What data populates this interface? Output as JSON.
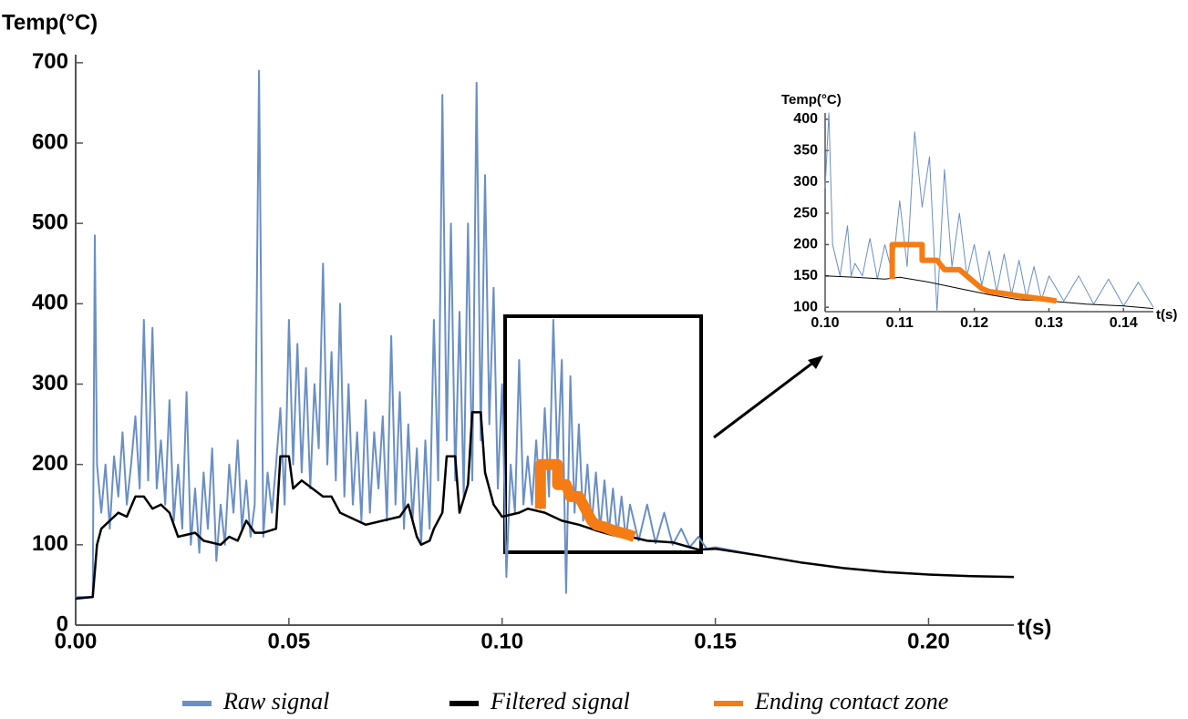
{
  "chart_data": [
    {
      "type": "line",
      "y_label": "Temp(°C)",
      "x_label": "t(s)",
      "xlim": [
        0,
        0.22
      ],
      "ylim": [
        0,
        710
      ],
      "xticks": [
        {
          "value": 0,
          "label": "0.00"
        },
        {
          "value": 0.05,
          "label": "0.05"
        },
        {
          "value": 0.1,
          "label": "0.10"
        },
        {
          "value": 0.15,
          "label": "0.15"
        },
        {
          "value": 0.2,
          "label": "0.20"
        }
      ],
      "yticks": [
        0,
        100,
        200,
        300,
        400,
        500,
        600,
        700
      ],
      "series": [
        {
          "name": "Raw signal",
          "color": "#6a8fc4",
          "width": 2,
          "x": [
            0,
            0.004,
            0.0045,
            0.005,
            0.006,
            0.007,
            0.008,
            0.009,
            0.01,
            0.011,
            0.012,
            0.013,
            0.014,
            0.015,
            0.016,
            0.017,
            0.018,
            0.019,
            0.02,
            0.021,
            0.022,
            0.023,
            0.024,
            0.025,
            0.026,
            0.027,
            0.028,
            0.029,
            0.03,
            0.031,
            0.032,
            0.033,
            0.034,
            0.035,
            0.036,
            0.037,
            0.038,
            0.039,
            0.04,
            0.041,
            0.042,
            0.043,
            0.044,
            0.045,
            0.046,
            0.047,
            0.048,
            0.049,
            0.05,
            0.051,
            0.052,
            0.053,
            0.054,
            0.055,
            0.056,
            0.057,
            0.058,
            0.059,
            0.06,
            0.061,
            0.062,
            0.063,
            0.064,
            0.065,
            0.066,
            0.067,
            0.068,
            0.069,
            0.07,
            0.071,
            0.072,
            0.073,
            0.074,
            0.075,
            0.076,
            0.077,
            0.078,
            0.079,
            0.08,
            0.081,
            0.082,
            0.083,
            0.084,
            0.085,
            0.086,
            0.087,
            0.088,
            0.089,
            0.09,
            0.091,
            0.092,
            0.093,
            0.094,
            0.095,
            0.096,
            0.097,
            0.098,
            0.099,
            0.1,
            0.101,
            0.102,
            0.103,
            0.104,
            0.105,
            0.106,
            0.107,
            0.108,
            0.109,
            0.11,
            0.111,
            0.112,
            0.113,
            0.114,
            0.115,
            0.116,
            0.117,
            0.118,
            0.119,
            0.12,
            0.121,
            0.122,
            0.123,
            0.124,
            0.125,
            0.126,
            0.127,
            0.128,
            0.129,
            0.13,
            0.132,
            0.134,
            0.136,
            0.138,
            0.14,
            0.142,
            0.144,
            0.146,
            0.148,
            0.15,
            0.16,
            0.17,
            0.18,
            0.19,
            0.2,
            0.21,
            0.22
          ],
          "values": [
            35,
            35,
            485,
            200,
            140,
            200,
            120,
            210,
            160,
            240,
            150,
            200,
            260,
            170,
            380,
            180,
            370,
            170,
            230,
            150,
            280,
            130,
            200,
            120,
            290,
            100,
            170,
            90,
            190,
            120,
            220,
            80,
            150,
            100,
            200,
            140,
            230,
            120,
            180,
            110,
            150,
            690,
            110,
            190,
            140,
            200,
            270,
            150,
            380,
            200,
            350,
            190,
            320,
            170,
            300,
            220,
            450,
            200,
            340,
            180,
            400,
            160,
            300,
            150,
            240,
            130,
            280,
            140,
            240,
            170,
            260,
            130,
            360,
            150,
            290,
            120,
            250,
            130,
            220,
            100,
            230,
            120,
            380,
            180,
            660,
            230,
            500,
            180,
            390,
            160,
            500,
            180,
            675,
            230,
            560,
            250,
            420,
            170,
            300,
            60,
            200,
            140,
            330,
            150,
            210,
            150,
            230,
            145,
            270,
            160,
            380,
            200,
            330,
            40,
            310,
            140,
            250,
            130,
            200,
            125,
            190,
            120,
            180,
            115,
            170,
            110,
            160,
            108,
            150,
            105,
            150,
            102,
            140,
            100,
            120,
            97,
            110,
            95,
            97,
            87,
            78,
            71,
            66,
            63,
            61,
            60
          ]
        },
        {
          "name": "Filtered signal",
          "color": "#000000",
          "width": 2.5,
          "x": [
            0,
            0.004,
            0.005,
            0.006,
            0.008,
            0.01,
            0.012,
            0.014,
            0.016,
            0.018,
            0.02,
            0.022,
            0.024,
            0.028,
            0.03,
            0.034,
            0.036,
            0.038,
            0.04,
            0.042,
            0.044,
            0.047,
            0.048,
            0.05,
            0.051,
            0.053,
            0.058,
            0.06,
            0.062,
            0.066,
            0.068,
            0.072,
            0.076,
            0.078,
            0.08,
            0.081,
            0.083,
            0.084,
            0.086,
            0.087,
            0.089,
            0.09,
            0.092,
            0.093,
            0.095,
            0.096,
            0.098,
            0.1,
            0.104,
            0.106,
            0.11,
            0.114,
            0.118,
            0.122,
            0.126,
            0.13,
            0.134,
            0.14,
            0.146,
            0.15,
            0.16,
            0.17,
            0.18,
            0.19,
            0.2,
            0.21,
            0.22
          ],
          "values": [
            33,
            35,
            100,
            120,
            130,
            140,
            135,
            160,
            160,
            145,
            150,
            140,
            110,
            115,
            105,
            100,
            110,
            105,
            130,
            115,
            115,
            120,
            210,
            210,
            170,
            180,
            160,
            160,
            140,
            130,
            125,
            130,
            135,
            150,
            110,
            100,
            105,
            120,
            140,
            210,
            210,
            140,
            175,
            265,
            265,
            190,
            150,
            135,
            140,
            145,
            140,
            130,
            125,
            118,
            112,
            110,
            105,
            103,
            94,
            95,
            87,
            78,
            71,
            66,
            63,
            61,
            60
          ]
        },
        {
          "name": "Ending contact zone",
          "color": "#f57c14",
          "width": 12,
          "x": [
            0.109,
            0.109,
            0.113,
            0.113,
            0.115,
            0.116,
            0.118,
            0.119,
            0.12,
            0.121,
            0.122,
            0.124,
            0.126,
            0.128,
            0.13,
            0.131
          ],
          "values": [
            145,
            200,
            200,
            175,
            175,
            160,
            160,
            150,
            140,
            130,
            125,
            122,
            118,
            115,
            112,
            110
          ]
        }
      ]
    },
    {
      "type": "line",
      "y_label": "Temp(°C)",
      "x_label": "t(s)",
      "xlim": [
        0.1,
        0.144
      ],
      "ylim": [
        93,
        410
      ],
      "xticks": [
        {
          "value": 0.1,
          "label": "0.10"
        },
        {
          "value": 0.11,
          "label": "0.11"
        },
        {
          "value": 0.12,
          "label": "0.12"
        },
        {
          "value": 0.13,
          "label": "0.13"
        },
        {
          "value": 0.14,
          "label": "0.14"
        }
      ],
      "yticks": [
        100,
        150,
        200,
        250,
        300,
        350,
        400
      ],
      "series": [
        {
          "color": "#6a8fc4",
          "width": 1,
          "x": [
            0.1,
            0.1005,
            0.101,
            0.102,
            0.103,
            0.1035,
            0.104,
            0.105,
            0.106,
            0.107,
            0.108,
            0.109,
            0.11,
            0.111,
            0.112,
            0.113,
            0.114,
            0.115,
            0.116,
            0.117,
            0.118,
            0.119,
            0.12,
            0.121,
            0.122,
            0.123,
            0.124,
            0.125,
            0.126,
            0.127,
            0.128,
            0.129,
            0.13,
            0.132,
            0.134,
            0.136,
            0.138,
            0.14,
            0.142,
            0.144
          ],
          "values": [
            290,
            410,
            200,
            150,
            230,
            150,
            170,
            150,
            210,
            145,
            200,
            155,
            270,
            165,
            380,
            260,
            340,
            93,
            320,
            165,
            250,
            150,
            200,
            135,
            190,
            125,
            185,
            120,
            175,
            115,
            165,
            112,
            150,
            110,
            150,
            105,
            145,
            102,
            140,
            100
          ]
        },
        {
          "color": "#000000",
          "width": 1,
          "x": [
            0.1,
            0.104,
            0.108,
            0.11,
            0.114,
            0.118,
            0.122,
            0.126,
            0.13,
            0.135,
            0.14,
            0.144
          ],
          "values": [
            150,
            148,
            145,
            148,
            140,
            130,
            120,
            112,
            110,
            105,
            102,
            98
          ]
        },
        {
          "color": "#f57c14",
          "width": 6,
          "x": [
            0.109,
            0.109,
            0.113,
            0.113,
            0.115,
            0.116,
            0.118,
            0.119,
            0.12,
            0.121,
            0.122,
            0.124,
            0.126,
            0.128,
            0.13,
            0.131
          ],
          "values": [
            145,
            200,
            200,
            175,
            175,
            160,
            160,
            150,
            140,
            130,
            125,
            122,
            118,
            115,
            112,
            110
          ]
        }
      ]
    }
  ]
}
